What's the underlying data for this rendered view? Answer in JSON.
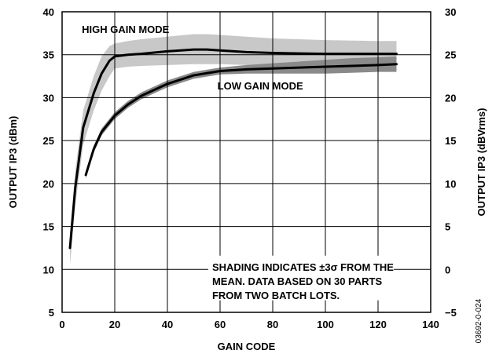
{
  "chart_data": {
    "type": "line",
    "xlabel": "GAIN CODE",
    "ylabel": "OUTPUT IP3 (dBm)",
    "y2label": "OUTPUT IP3 (dBVrms)",
    "xlim": [
      0,
      140
    ],
    "ylim": [
      5,
      40
    ],
    "y2lim": [
      -5,
      30
    ],
    "x_ticks": [
      0,
      20,
      40,
      60,
      80,
      100,
      120,
      140
    ],
    "y_ticks": [
      5,
      10,
      15,
      20,
      25,
      30,
      35,
      40
    ],
    "y2_ticks": [
      "−5",
      "0",
      "5",
      "10",
      "15",
      "20",
      "25",
      "30"
    ],
    "grid": true,
    "series": [
      {
        "name": "HIGH GAIN MODE",
        "x": [
          3,
          5,
          8,
          12,
          15,
          18,
          20,
          25,
          30,
          40,
          50,
          55,
          60,
          70,
          80,
          100,
          120,
          127
        ],
        "y": [
          12.5,
          19.5,
          26.5,
          30.5,
          32.8,
          34.3,
          34.8,
          35.0,
          35.1,
          35.4,
          35.6,
          35.6,
          35.5,
          35.3,
          35.2,
          35.1,
          35.1,
          35.1
        ],
        "band_upper": [
          14.0,
          21.5,
          28.5,
          32.5,
          34.8,
          36.0,
          36.3,
          36.6,
          36.8,
          37.1,
          37.4,
          37.4,
          37.3,
          37.1,
          36.9,
          36.7,
          36.6,
          36.6
        ],
        "band_lower": [
          10.5,
          17.5,
          24.5,
          28.5,
          30.8,
          32.5,
          33.4,
          33.6,
          33.7,
          33.8,
          33.9,
          33.9,
          33.9,
          33.8,
          33.7,
          33.6,
          33.6,
          33.6
        ]
      },
      {
        "name": "LOW GAIN MODE",
        "x": [
          9,
          12,
          15,
          20,
          25,
          30,
          40,
          50,
          60,
          70,
          80,
          90,
          100,
          110,
          120,
          127
        ],
        "y": [
          21.0,
          24.0,
          26.0,
          27.9,
          29.2,
          30.2,
          31.6,
          32.6,
          33.1,
          33.3,
          33.4,
          33.5,
          33.6,
          33.7,
          33.8,
          33.9
        ],
        "band_upper": [
          21.4,
          24.4,
          26.4,
          28.3,
          29.6,
          30.6,
          32.0,
          33.0,
          33.5,
          33.8,
          34.0,
          34.2,
          34.4,
          34.6,
          34.7,
          34.8
        ],
        "band_lower": [
          20.6,
          23.6,
          25.6,
          27.5,
          28.8,
          29.8,
          31.2,
          32.2,
          32.7,
          32.8,
          32.8,
          32.8,
          32.8,
          32.9,
          33.0,
          33.0
        ]
      }
    ],
    "annotation": [
      "SHADING INDICATES ±3σ FROM THE",
      "MEAN. DATA BASED ON 30 PARTS",
      "FROM TWO BATCH LOTS."
    ],
    "figure_id": "03692-0-024",
    "colors": {
      "high_band": "#c8c8c8",
      "low_band": "#8a8a8a",
      "line": "#000000",
      "grid": "#000000"
    }
  }
}
